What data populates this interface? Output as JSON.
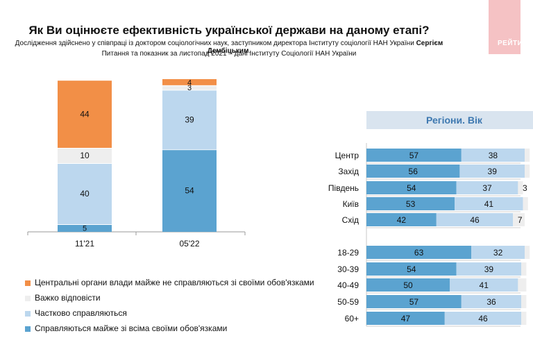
{
  "header": {
    "title": "Як Ви оцінюєте ефективність української держави на даному етапі?",
    "subtitle_prefix": "Дослідження здійснено у співпраці із доктором соціологічних наук, заступником директора Інституту соціології НАН України ",
    "subtitle_name": "Сергієм Дембіцьким",
    "subtitle_suffix": ".",
    "subtitle2": "Питання та показник за листопад 2021 – дані Інституту Соціології НАН України"
  },
  "logo": {
    "text": "РЕЙТИ"
  },
  "colors": {
    "dark_blue": "#5ba3d0",
    "light_blue": "#bcd7ee",
    "gray": "#eeeeee",
    "orange": "#f28f47",
    "separator": "#cfcfcf"
  },
  "regions_panel": {
    "title": "Регіони. Вік"
  },
  "chart_data": [
    {
      "type": "bar",
      "orientation": "vertical-stacked",
      "categories": [
        "11'21",
        "05'22"
      ],
      "series": [
        {
          "name": "Справляються майже зі всіма своїми обов'язками",
          "values": [
            5,
            54
          ],
          "labels": [
            "5",
            "54"
          ]
        },
        {
          "name": "Частково справляються",
          "values": [
            40,
            39
          ],
          "labels": [
            "40",
            "39"
          ]
        },
        {
          "name": "Важко відповісти",
          "values": [
            10,
            3
          ],
          "labels": [
            "10",
            "3"
          ]
        },
        {
          "name": "Центральні органи влади майже не справляються зі своїми обов'язками",
          "values": [
            44,
            4
          ],
          "labels": [
            "44",
            "4"
          ]
        }
      ],
      "legend_order": [
        "Центральні органи влади майже не справляються зі своїми обов'язками",
        "Важко відповісти",
        "Частково справляються",
        "Справляються майже зі всіма своїми обов'язками"
      ],
      "ylim": [
        0,
        100
      ]
    },
    {
      "type": "bar",
      "orientation": "horizontal-stacked",
      "categories": [
        "Центр",
        "Захід",
        "Південь",
        "Київ",
        "Схід",
        "18-29",
        "30-39",
        "40-49",
        "50-59",
        "60+"
      ],
      "group_break_after": 4,
      "series": [
        {
          "name": "Справляються майже зі всіма своїми обов'язками",
          "values": [
            57,
            56,
            54,
            53,
            42,
            63,
            54,
            50,
            57,
            47
          ],
          "labels": [
            "57",
            "56",
            "54",
            "53",
            "42",
            "63",
            "54",
            "50",
            "57",
            "47"
          ]
        },
        {
          "name": "Частково справляються",
          "values": [
            38,
            39,
            37,
            41,
            46,
            32,
            39,
            41,
            36,
            46
          ],
          "labels": [
            "38",
            "39",
            "37",
            "41",
            "46",
            "32",
            "39",
            "41",
            "36",
            "46"
          ]
        },
        {
          "name": "Важко відповісти",
          "values": [
            3,
            3,
            3,
            3,
            7,
            3,
            3,
            5,
            3,
            3
          ],
          "labels": [
            "",
            "",
            "3",
            "",
            "7",
            "",
            "",
            "",
            "",
            ""
          ]
        }
      ],
      "xlim": [
        0,
        100
      ]
    }
  ]
}
